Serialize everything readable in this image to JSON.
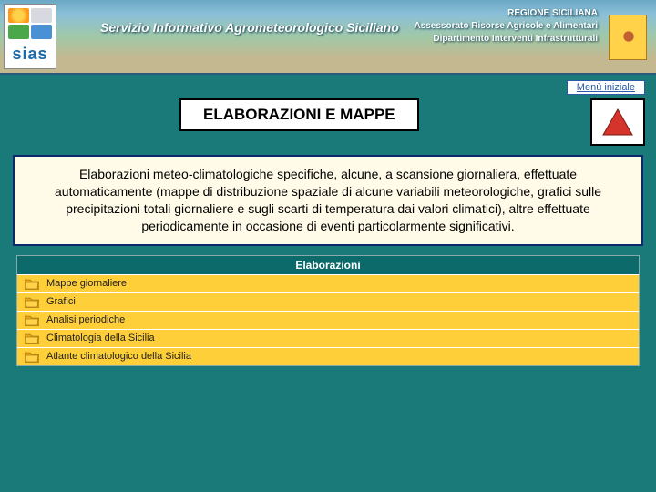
{
  "colors": {
    "page_bg": "#1a7a7a",
    "panel_bg": "#fffbe8",
    "panel_border": "#0a2a6a",
    "title_border": "#000000",
    "table_header_bg": "#0d6a6a",
    "table_row_bg": "#ffcf3a",
    "link_color": "#2a5aa8",
    "triangle_color": "#d4342a"
  },
  "banner": {
    "logo_label": "sias",
    "service_title": "Servizio Informativo Agrometeorologico Siciliano",
    "region_line1": "REGIONE SICILIANA",
    "region_line2": "Assessorato Risorse Agricole e Alimentari",
    "region_line3": "Dipartimento Interventi Infrastrutturali"
  },
  "nav": {
    "menu_link_label": "Menù iniziale"
  },
  "page": {
    "title": "ELABORAZIONI  E  MAPPE",
    "description": "Elaborazioni meteo-climatologiche specifiche, alcune, a scansione giornaliera, effettuate automaticamente (mappe di distribuzione spaziale di alcune variabili meteorologiche, grafici sulle precipitazioni totali giornaliere e sugli scarti di temperatura dai valori climatici), altre effettuate periodicamente in occasione di eventi particolarmente significativi."
  },
  "table": {
    "header": "Elaborazioni",
    "rows": [
      {
        "label": "Mappe giornaliere"
      },
      {
        "label": "Grafici"
      },
      {
        "label": "Analisi periodiche"
      },
      {
        "label": "Climatologia della Sicilia"
      },
      {
        "label": "Atlante climatologico della Sicilia"
      }
    ]
  }
}
